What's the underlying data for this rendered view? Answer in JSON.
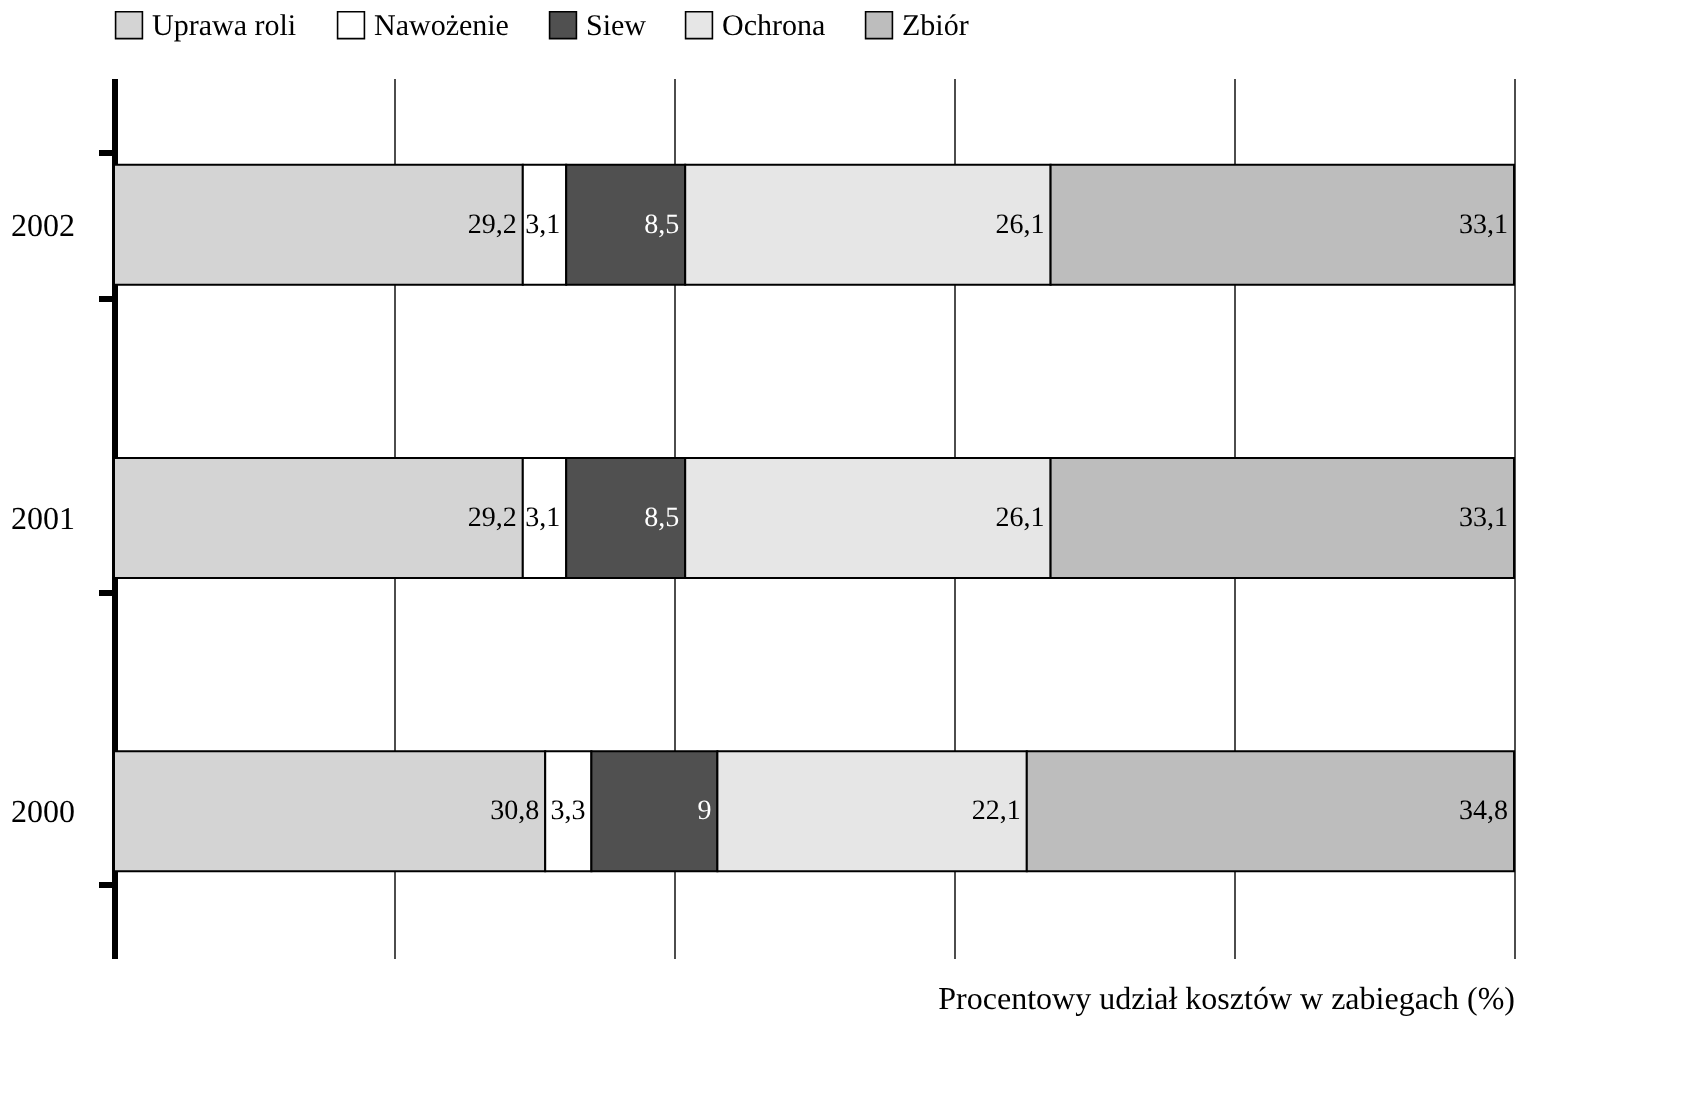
{
  "chart_data": {
    "type": "bar",
    "orientation": "horizontal",
    "stacked": true,
    "categories": [
      "2002",
      "2001",
      "2000"
    ],
    "series": [
      {
        "name": "Uprawa roli",
        "color": "#d4d4d4",
        "values": [
          29.2,
          29.2,
          30.8
        ],
        "value_labels": [
          "29,2",
          "29,2",
          "30,8"
        ]
      },
      {
        "name": "Nawożenie",
        "color": "#ffffff",
        "values": [
          3.1,
          3.1,
          3.3
        ],
        "value_labels": [
          "3,1",
          "3,1",
          "3,3"
        ]
      },
      {
        "name": "Siew",
        "color": "#505050",
        "values": [
          8.5,
          8.5,
          9
        ],
        "value_labels": [
          "8,5",
          "8,5",
          "9"
        ]
      },
      {
        "name": "Ochrona",
        "color": "#e6e6e6",
        "values": [
          26.1,
          26.1,
          22.1
        ],
        "value_labels": [
          "26,1",
          "26,1",
          "22,1"
        ]
      },
      {
        "name": "Zbiór",
        "color": "#bdbdbd",
        "values": [
          33.1,
          33.1,
          34.8
        ],
        "value_labels": [
          "33,1",
          "33,1",
          "34,8"
        ]
      }
    ],
    "xlim": [
      0,
      100
    ],
    "xticks": [
      {
        "value": 0,
        "label": null
      },
      {
        "value": 20,
        "label": null
      },
      {
        "value": 40,
        "label": null
      },
      {
        "value": 60,
        "label": null
      },
      {
        "value": 80,
        "label": null
      },
      {
        "value": 100,
        "label": null
      }
    ],
    "xlabel": "Procentowy udział kosztów w zabiegach (%)",
    "tick_labels": "y",
    "grid": "x",
    "legend": "top"
  }
}
